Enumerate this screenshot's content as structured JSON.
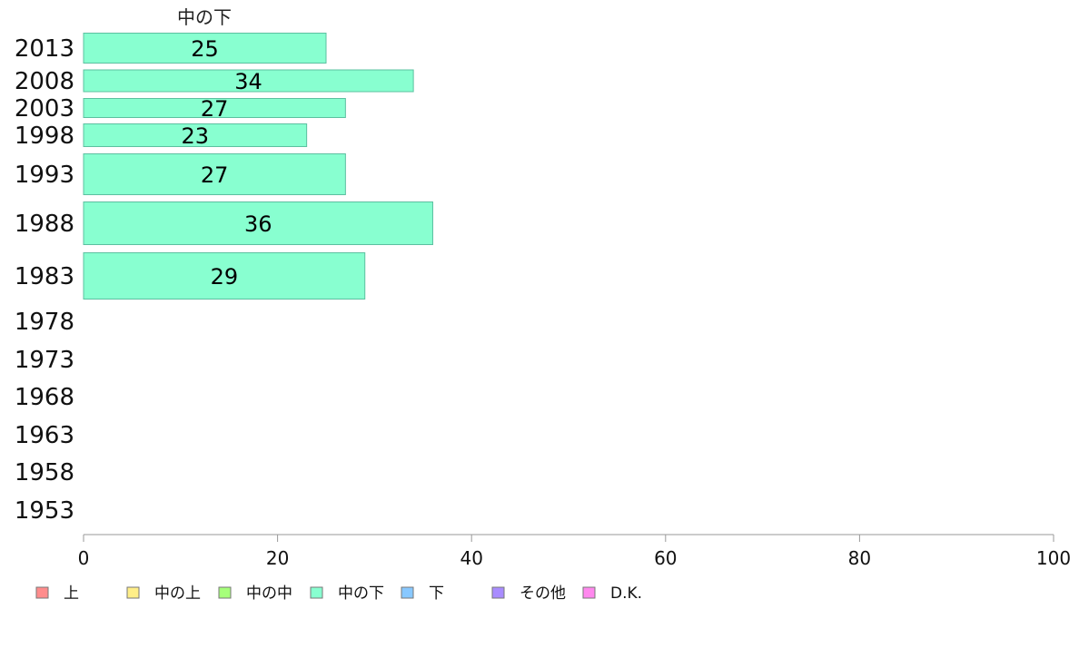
{
  "chart_data": {
    "type": "bar",
    "orientation": "horizontal",
    "series_title": "中の下",
    "categories": [
      "2013",
      "2008",
      "2003",
      "1998",
      "1993",
      "1988",
      "1983",
      "1978",
      "1973",
      "1968",
      "1963",
      "1958",
      "1953"
    ],
    "series": [
      {
        "name": "中の下",
        "values": [
          25,
          34,
          27,
          23,
          27,
          36,
          29,
          null,
          null,
          null,
          null,
          null,
          null
        ],
        "color": "#88ffd0"
      }
    ],
    "xlim": [
      0,
      100
    ],
    "x_ticks": [
      0,
      20,
      40,
      60,
      80,
      100
    ],
    "grid": false,
    "legend_position": "bottom",
    "legend": [
      {
        "label": "上",
        "color": "#ff8c8c"
      },
      {
        "label": "中の上",
        "color": "#ffee88"
      },
      {
        "label": "中の中",
        "color": "#a6ff7a"
      },
      {
        "label": "中の下",
        "color": "#88ffd0"
      },
      {
        "label": "下",
        "color": "#88c8ff"
      },
      {
        "label": "その他",
        "color": "#a98cff"
      },
      {
        "label": "D.K.",
        "color": "#ff88ee"
      }
    ]
  }
}
